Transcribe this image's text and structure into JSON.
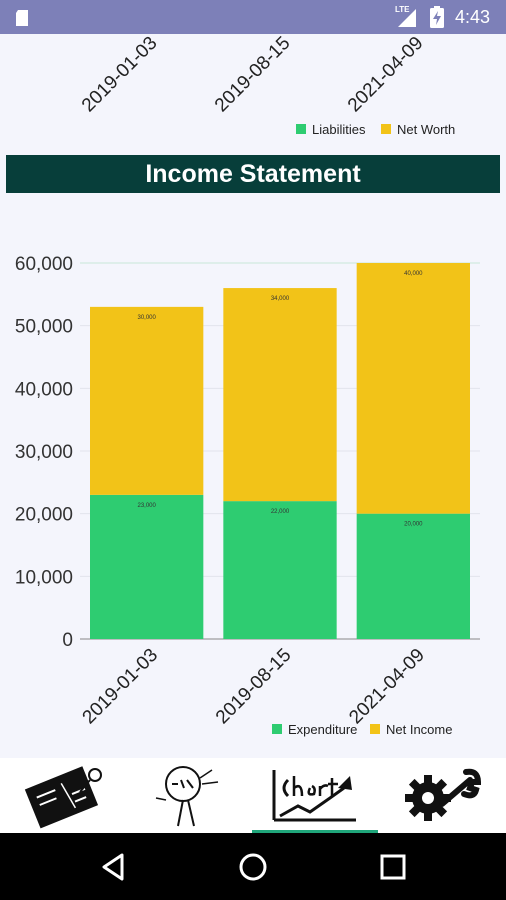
{
  "status_bar": {
    "network": "LTE",
    "time": "4:43",
    "icons": [
      "sd-card-icon",
      "signal-icon",
      "battery-charging-icon"
    ]
  },
  "top_chart": {
    "categories": [
      "2019-01-03",
      "2019-08-15",
      "2021-04-09"
    ],
    "legend": [
      {
        "name": "Liabilities",
        "color": "#2ecc71"
      },
      {
        "name": "Net Worth",
        "color": "#f2c318"
      }
    ]
  },
  "section": {
    "title": "Income Statement"
  },
  "chart_data": {
    "type": "bar",
    "stacked": true,
    "categories": [
      "2019-01-03",
      "2019-08-15",
      "2021-04-09"
    ],
    "series": [
      {
        "name": "Expenditure",
        "color": "#2ecc71",
        "values": [
          23000,
          22000,
          20000
        ],
        "labels": [
          "23,000",
          "22,000",
          "20,000"
        ]
      },
      {
        "name": "Net Income",
        "color": "#f2c318",
        "values": [
          30000,
          34000,
          40000
        ],
        "labels": [
          "30,000",
          "34,000",
          "40,000"
        ]
      }
    ],
    "yticks": [
      0,
      10000,
      20000,
      30000,
      40000,
      50000,
      60000
    ],
    "ytick_labels": [
      "0",
      "10,000",
      "20,000",
      "30,000",
      "40,000",
      "50,000",
      "60,000"
    ],
    "ylim": [
      0,
      60000
    ],
    "grid": true,
    "legend_position": "bottom-right"
  },
  "bottom_nav": {
    "items": [
      {
        "name": "assets-entry-icon"
      },
      {
        "name": "balance-chart-icon"
      },
      {
        "name": "chart-icon",
        "active": true
      },
      {
        "name": "settings-icon"
      }
    ]
  },
  "colors": {
    "accent": "#1fa67a",
    "header": "#073e3a",
    "status_bar": "#7d80b8"
  }
}
